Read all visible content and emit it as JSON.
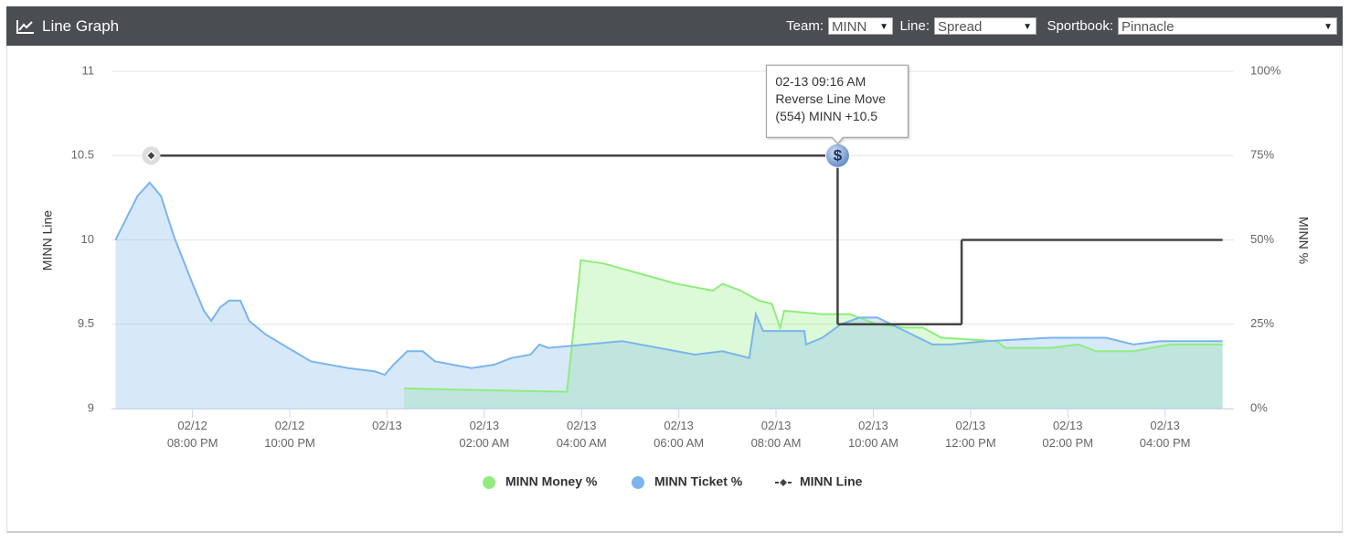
{
  "header": {
    "title": "Line Graph",
    "team_label": "Team:",
    "team_value": "MINN",
    "line_label": "Line:",
    "line_value": "Spread",
    "sportbook_label": "Sportbook:",
    "sportbook_value": "Pinnacle"
  },
  "chart_data": {
    "type": "line",
    "y_label": "MINN Line",
    "y2_label": "MINN %",
    "xlim": [
      "02/12 18:20",
      "02/13 17:25"
    ],
    "xticks": [
      {
        "value": "02/12 20:00",
        "label": "02/12 08:00 PM"
      },
      {
        "value": "02/12 22:00",
        "label": "02/12 10:00 PM"
      },
      {
        "value": "02/13 00:00",
        "label": "02/13"
      },
      {
        "value": "02/13 02:00",
        "label": "02/13 02:00 AM"
      },
      {
        "value": "02/13 04:00",
        "label": "02/13 04:00 AM"
      },
      {
        "value": "02/13 06:00",
        "label": "02/13 06:00 AM"
      },
      {
        "value": "02/13 08:00",
        "label": "02/13 08:00 AM"
      },
      {
        "value": "02/13 10:00",
        "label": "02/13 10:00 AM"
      },
      {
        "value": "02/13 12:00",
        "label": "02/13 12:00 PM"
      },
      {
        "value": "02/13 14:00",
        "label": "02/13 02:00 PM"
      },
      {
        "value": "02/13 16:00",
        "label": "02/13 04:00 PM"
      }
    ],
    "ylim": [
      9,
      11
    ],
    "yticks": [
      9,
      9.5,
      10,
      10.5,
      11
    ],
    "y2lim": [
      0,
      100
    ],
    "y2ticks": [
      {
        "value": 0,
        "label": "0%"
      },
      {
        "value": 25,
        "label": "25%"
      },
      {
        "value": 50,
        "label": "50%"
      },
      {
        "value": 75,
        "label": "75%"
      },
      {
        "value": 100,
        "label": "100%"
      }
    ],
    "grid": true,
    "series": [
      {
        "name": "MINN Money %",
        "color": "#90ed7d",
        "axis": "y2",
        "area": true,
        "x": [
          "02/13 00:21",
          "02/13 01:49",
          "02/13 03:42",
          "02/13 03:59",
          "02/13 04:27",
          "02/13 05:12",
          "02/13 05:57",
          "02/13 06:42",
          "02/13 06:54",
          "02/13 07:16",
          "02/13 07:39",
          "02/13 07:55",
          "02/13 08:05",
          "02/13 08:10",
          "02/13 08:57",
          "02/13 09:31",
          "02/13 10:05",
          "02/13 10:39",
          "02/13 11:01",
          "02/13 11:24",
          "02/13 12:32",
          "02/13 12:43",
          "02/13 13:39",
          "02/13 14:13",
          "02/13 14:35",
          "02/13 15:21",
          "02/13 16:06",
          "02/13 16:28",
          "02/13 17:11"
        ],
        "values": [
          6,
          5.5,
          5,
          44,
          43,
          40,
          37,
          35,
          37,
          35,
          32,
          31,
          24,
          29,
          28,
          28,
          25,
          24,
          24,
          21,
          20,
          18,
          18,
          19,
          17,
          17,
          19,
          19,
          19
        ]
      },
      {
        "name": "MINN Ticket %",
        "color": "#7cb5ec",
        "axis": "y2",
        "area": true,
        "x": [
          "02/12 18:25",
          "02/12 18:52",
          "02/12 19:07",
          "02/12 19:21",
          "02/12 19:37",
          "02/12 20:00",
          "02/12 20:14",
          "02/12 20:23",
          "02/12 20:34",
          "02/12 20:45",
          "02/12 20:59",
          "02/12 21:10",
          "02/12 21:30",
          "02/12 21:58",
          "02/12 22:26",
          "02/12 23:12",
          "02/12 23:45",
          "02/12 23:57",
          "02/13 00:08",
          "02/13 00:25",
          "02/13 00:44",
          "02/13 00:59",
          "02/13 01:21",
          "02/13 01:44",
          "02/13 02:12",
          "02/13 02:34",
          "02/13 02:57",
          "02/13 03:08",
          "02/13 03:19",
          "02/13 04:05",
          "02/13 04:50",
          "02/13 05:35",
          "02/13 06:20",
          "02/13 06:54",
          "02/13 07:27",
          "02/13 07:35",
          "02/13 07:44",
          "02/13 08:12",
          "02/13 08:35",
          "02/13 08:37",
          "02/13 08:57",
          "02/13 09:20",
          "02/13 09:43",
          "02/13 10:05",
          "02/13 10:22",
          "02/13 10:39",
          "02/13 11:13",
          "02/13 11:35",
          "02/13 12:20",
          "02/13 13:39",
          "02/13 14:47",
          "02/13 15:21",
          "02/13 15:54",
          "02/13 16:28",
          "02/13 17:11"
        ],
        "values": [
          50,
          63,
          67,
          63,
          51,
          37,
          29,
          26,
          30,
          32,
          32,
          26,
          22,
          18,
          14,
          12,
          11,
          10,
          13,
          17,
          17,
          14,
          13,
          12,
          13,
          15,
          16,
          19,
          18,
          19,
          20,
          18,
          16,
          17,
          15,
          28,
          23,
          23,
          23,
          19,
          21,
          25,
          27,
          27,
          25,
          23,
          19,
          19,
          20,
          21,
          21,
          19,
          20,
          20,
          20
        ]
      },
      {
        "name": "MINN Line",
        "color": "#434348",
        "axis": "y",
        "step": true,
        "x": [
          "02/12 19:09",
          "02/13 09:16",
          "02/13 11:49",
          "02/13 17:11"
        ],
        "values": [
          10.5,
          9.5,
          10,
          10
        ]
      }
    ],
    "annotation": {
      "lines": [
        "02-13 09:16 AM",
        "Reverse Line Move",
        "(554) MINN +10.5"
      ]
    }
  }
}
